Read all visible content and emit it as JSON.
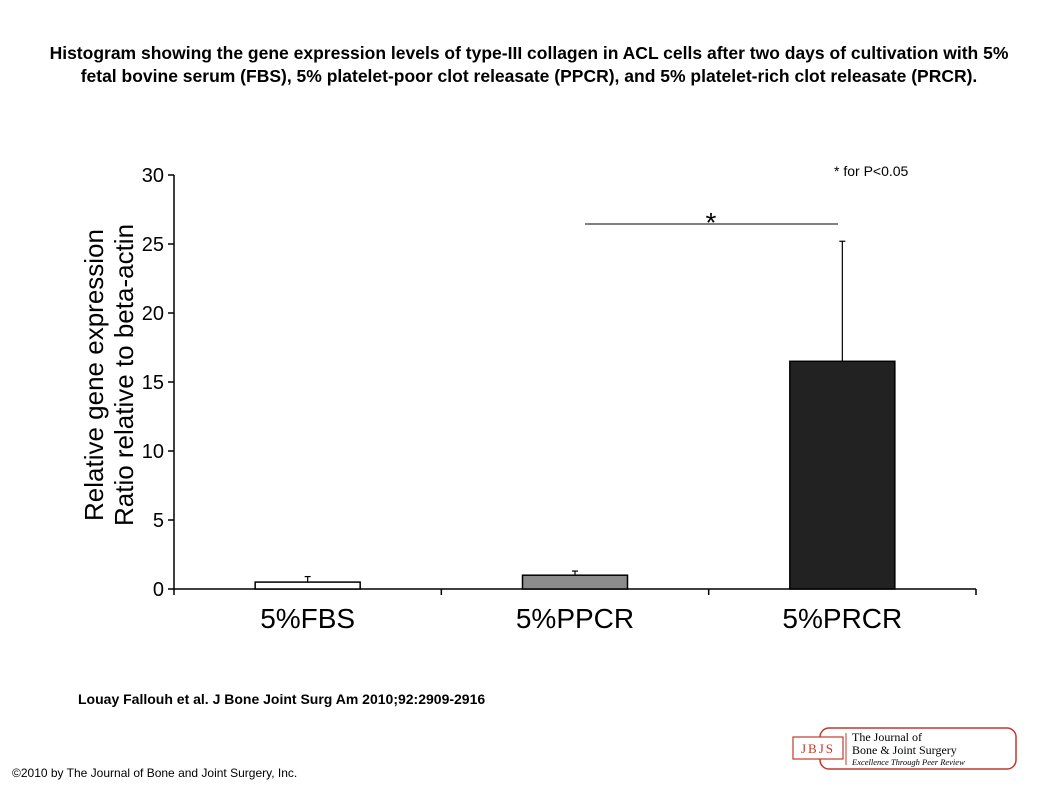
{
  "title": "Histogram showing the gene expression levels of type-III collagen in ACL cells after two days of cultivation with 5% fetal bovine serum (FBS), 5% platelet-poor clot releasate (PPCR), and 5% platelet-rich clot releasate (PRCR).",
  "citation": "Louay Fallouh et al. J Bone Joint Surg Am 2010;92:2909-2916",
  "copyright": "©2010 by The Journal of Bone and Joint Surgery, Inc.",
  "logo": {
    "monogram": "JBJS",
    "line1": "The Journal of",
    "line2": "Bone & Joint Surgery",
    "line3": "Excellence Through Peer Review"
  },
  "colors": {
    "fbs": "#ffffff",
    "ppcr": "#8c8c8c",
    "prcr": "#222222",
    "logo": "#c0392b"
  },
  "chart_data": {
    "type": "bar",
    "categories": [
      "5%FBS",
      "5%PPCR",
      "5%PRCR"
    ],
    "values": [
      0.5,
      1.0,
      16.5
    ],
    "error_upper": [
      0.9,
      1.3,
      25.2
    ],
    "ylim": [
      0,
      30
    ],
    "yticks": [
      0,
      5,
      10,
      15,
      20,
      25,
      30
    ],
    "ylabel_line1": "Relative gene expression",
    "ylabel_line2": "Ratio relative to beta-actin",
    "significance_marker": "*",
    "significance_note": "* for P<0.05",
    "grid": false
  }
}
